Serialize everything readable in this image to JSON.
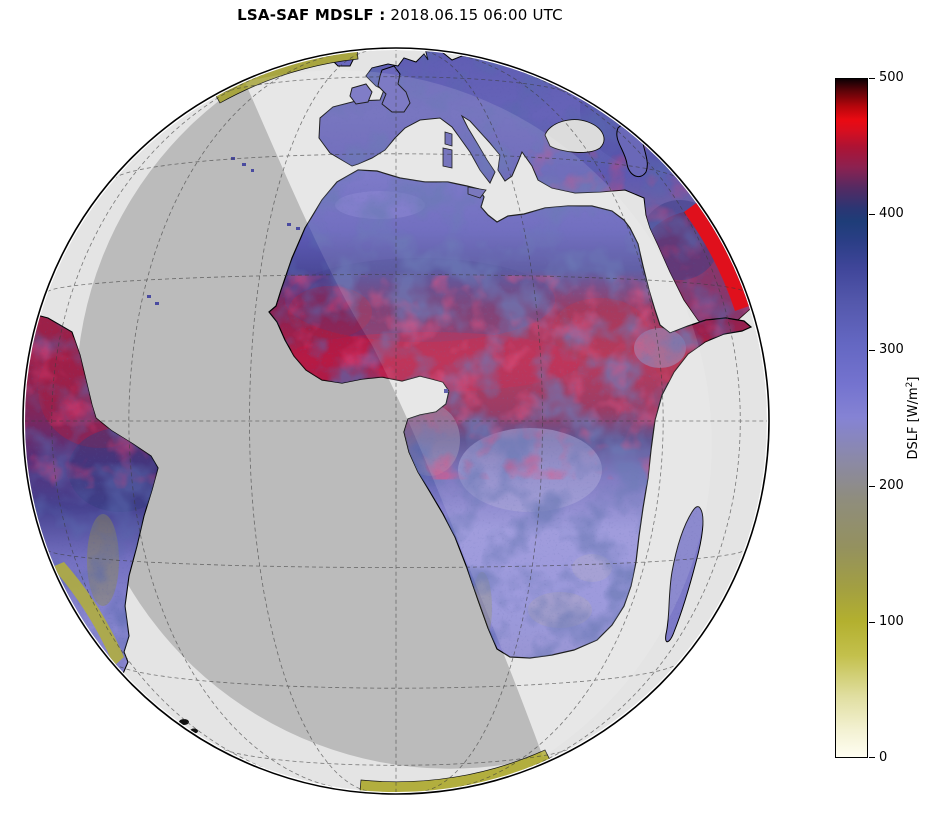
{
  "title": {
    "bold": "LSA-SAF MDSLF :",
    "regular": " 2018.06.15 06:00 UTC"
  },
  "colorbar": {
    "label_pre": "DSLF [W/m",
    "label_sup": "2",
    "label_post": "]",
    "ticks": [
      "500",
      "400",
      "300",
      "200",
      "100",
      "0"
    ],
    "min": 0,
    "max": 500,
    "gradient": [
      "#fffef2 0%",
      "#f3f1d2 4%",
      "#e0deA0 9%",
      "#c3c04c 15%",
      "#b3b02f 20%",
      "#a29f42 25%",
      "#94915f 31%",
      "#8f8d7d 38%",
      "#8b89a8 44%",
      "#8583d4 50%",
      "#7473cf 55%",
      "#6467c2 61%",
      "#5458ac 67%",
      "#40469a 72%",
      "#2b3e86 76%",
      "#1e3d78 79%",
      "#2c3573 81%",
      "#552a62 84%",
      "#8c2150 87%",
      "#ad1334 90%",
      "#d90e1e 92.5%",
      "#ea0a12 94%",
      "#b4060c 96%",
      "#520308 98.5%",
      "#0d0004 100%"
    ]
  },
  "chart_data": {
    "type": "heatmap",
    "title": "LSA-SAF MDSLF : 2018.06.15 06:00 UTC",
    "colorbar_label": "DSLF [W/m2]",
    "value_range": [
      0,
      500
    ],
    "tick_values": [
      0,
      100,
      200,
      300,
      400,
      500
    ],
    "scale_colors": {
      "0": "#fffef2",
      "100": "#b3b02f",
      "200": "#8f8d7d",
      "300": "#6467c2",
      "400": "#1e3d78",
      "450": "#ad1334",
      "470": "#ea0a12",
      "500": "#0d0004"
    },
    "legend_position": "right",
    "projection": "full-disk globe centered on Africa",
    "day_ocean_color": "#e4e4e4",
    "night_ocean_color": "#b6b6b6"
  }
}
